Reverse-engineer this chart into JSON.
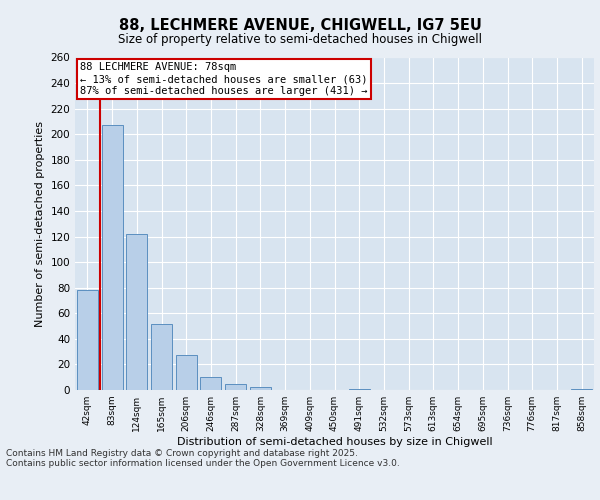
{
  "title_line1": "88, LECHMERE AVENUE, CHIGWELL, IG7 5EU",
  "title_line2": "Size of property relative to semi-detached houses in Chigwell",
  "xlabel": "Distribution of semi-detached houses by size in Chigwell",
  "ylabel": "Number of semi-detached properties",
  "categories": [
    "42sqm",
    "83sqm",
    "124sqm",
    "165sqm",
    "206sqm",
    "246sqm",
    "287sqm",
    "328sqm",
    "369sqm",
    "409sqm",
    "450sqm",
    "491sqm",
    "532sqm",
    "573sqm",
    "613sqm",
    "654sqm",
    "695sqm",
    "736sqm",
    "776sqm",
    "817sqm",
    "858sqm"
  ],
  "values": [
    78,
    207,
    122,
    52,
    27,
    10,
    5,
    2,
    0,
    0,
    0,
    1,
    0,
    0,
    0,
    0,
    0,
    0,
    0,
    0,
    1
  ],
  "bar_color": "#b8cfe8",
  "bar_edge_color": "#5b8fc0",
  "vline_pos": 0.5,
  "vline_color": "#cc0000",
  "annotation_text": "88 LECHMERE AVENUE: 78sqm\n← 13% of semi-detached houses are smaller (63)\n87% of semi-detached houses are larger (431) →",
  "annotation_box_color": "#cc0000",
  "background_color": "#e8eef5",
  "plot_bg_color": "#d8e4f0",
  "grid_color": "#ffffff",
  "footer_line1": "Contains HM Land Registry data © Crown copyright and database right 2025.",
  "footer_line2": "Contains public sector information licensed under the Open Government Licence v3.0.",
  "ylim": [
    0,
    260
  ],
  "yticks": [
    0,
    20,
    40,
    60,
    80,
    100,
    120,
    140,
    160,
    180,
    200,
    220,
    240,
    260
  ]
}
